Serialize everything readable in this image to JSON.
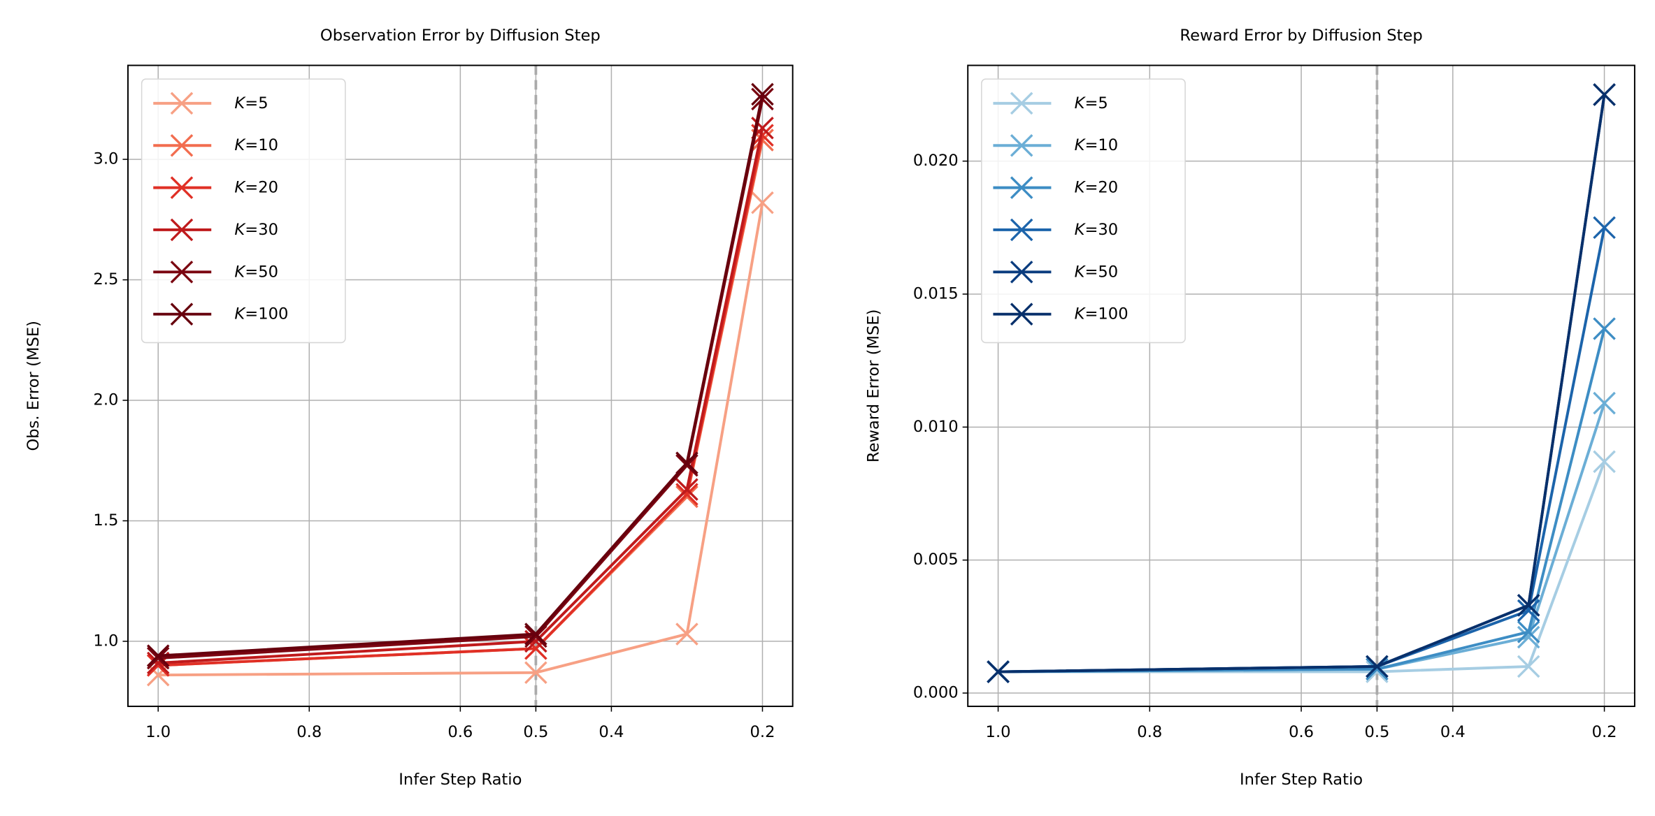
{
  "chart_data": [
    {
      "type": "line",
      "title": "Observation Error by Diffusion Step",
      "xlabel": "Infer Step Ratio",
      "ylabel": "Obs. Error (MSE)",
      "x": [
        1.0,
        0.5,
        0.3,
        0.2
      ],
      "series": [
        {
          "name": "K=5",
          "color": "#f7a084",
          "values": [
            0.86,
            0.87,
            1.03,
            2.82
          ]
        },
        {
          "name": "K=10",
          "color": "#f26d4f",
          "values": [
            0.9,
            0.97,
            1.6,
            3.08
          ]
        },
        {
          "name": "K=20",
          "color": "#e03026",
          "values": [
            0.9,
            0.97,
            1.61,
            3.1
          ]
        },
        {
          "name": "K=30",
          "color": "#bf1a1c",
          "values": [
            0.91,
            1.0,
            1.63,
            3.13
          ]
        },
        {
          "name": "K=50",
          "color": "#7b0611",
          "values": [
            0.93,
            1.02,
            1.73,
            3.25
          ]
        },
        {
          "name": "K=100",
          "color": "#67000d",
          "values": [
            0.94,
            1.03,
            1.74,
            3.27
          ]
        }
      ],
      "xlim": [
        1.04,
        0.16
      ],
      "ylim": [
        0.73,
        3.39
      ],
      "xticks": [
        {
          "value": 1,
          "label": "1.0"
        },
        0.8,
        0.6,
        0.5,
        0.4,
        0.2
      ],
      "yticks": [
        {
          "value": 1,
          "label": "1.0"
        },
        1.5,
        {
          "value": 2,
          "label": "2.0"
        },
        2.5,
        {
          "value": 3,
          "label": "3.0"
        }
      ],
      "vline": 0.5,
      "grid": true,
      "legend": "upper left"
    },
    {
      "type": "line",
      "title": "Reward Error by Diffusion Step",
      "xlabel": "Infer Step Ratio",
      "ylabel": "Reward Error (MSE)",
      "x": [
        1.0,
        0.5,
        0.3,
        0.2
      ],
      "series": [
        {
          "name": "K=5",
          "color": "#a6cde3",
          "values": [
            0.0008,
            0.0008,
            0.001,
            0.0087
          ]
        },
        {
          "name": "K=10",
          "color": "#6baed6",
          "values": [
            0.0008,
            0.0009,
            0.0021,
            0.0109
          ]
        },
        {
          "name": "K=20",
          "color": "#3d8dc4",
          "values": [
            0.0008,
            0.0009,
            0.0023,
            0.0137
          ]
        },
        {
          "name": "K=30",
          "color": "#1c64ab",
          "values": [
            0.0008,
            0.001,
            0.0031,
            0.0175
          ]
        },
        {
          "name": "K=50",
          "color": "#0b3d7f",
          "values": [
            0.0008,
            0.001,
            0.0033,
            0.0225
          ]
        },
        {
          "name": "K=100",
          "color": "#08306b",
          "values": [
            0.0008,
            0.001,
            0.0033,
            0.0225
          ]
        }
      ],
      "xlim": [
        1.04,
        0.16
      ],
      "ylim": [
        -0.0005,
        0.0236
      ],
      "xticks": [
        {
          "value": 1,
          "label": "1.0"
        },
        0.8,
        0.6,
        0.5,
        0.4,
        0.2
      ],
      "yticks": [
        {
          "value": 0,
          "label": "0.000"
        },
        0.005,
        {
          "value": 0.01,
          "label": "0.010"
        },
        0.015,
        {
          "value": 0.02,
          "label": "0.020"
        }
      ],
      "vline": 0.5,
      "grid": true,
      "legend": "upper left"
    }
  ]
}
